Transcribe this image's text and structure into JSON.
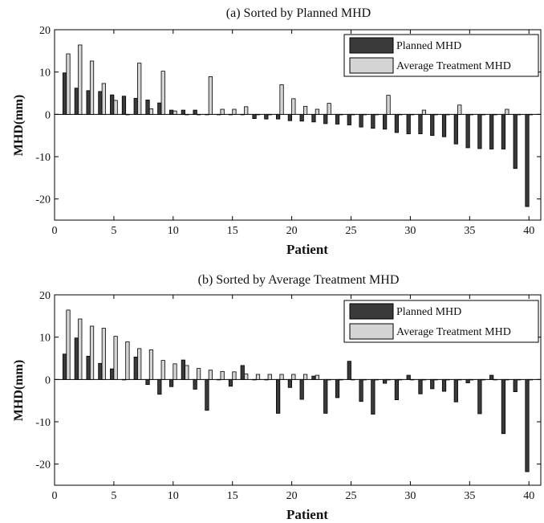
{
  "colors": {
    "planned": "#3a3a3a",
    "treatment": "#d4d4d4",
    "axis": "#000000",
    "background": "#ffffff"
  },
  "chart_data": [
    {
      "type": "bar",
      "title": "(a) Sorted by Planned MHD",
      "xlabel": "Patient",
      "ylabel": "MHD(mm)",
      "xlim": [
        0,
        41
      ],
      "ylim": [
        -25,
        20
      ],
      "xticks": [
        0,
        5,
        10,
        15,
        20,
        25,
        30,
        35,
        40
      ],
      "yticks": [
        -20,
        -10,
        0,
        10,
        20
      ],
      "grid": false,
      "legend_position": "top-right",
      "x": [
        1,
        2,
        3,
        4,
        5,
        6,
        7,
        8,
        9,
        10,
        11,
        12,
        13,
        14,
        15,
        16,
        17,
        18,
        19,
        20,
        21,
        22,
        23,
        24,
        25,
        26,
        27,
        28,
        29,
        30,
        31,
        32,
        33,
        34,
        35,
        36,
        37,
        38,
        39,
        40
      ],
      "series": [
        {
          "name": "Planned MHD",
          "values": [
            9.8,
            6.2,
            5.6,
            5.4,
            4.6,
            4.3,
            3.8,
            3.4,
            2.7,
            1.0,
            1.0,
            1.0,
            0.0,
            0.0,
            0.0,
            0.0,
            -1.0,
            -1.1,
            -1.1,
            -1.5,
            -1.6,
            -1.8,
            -2.2,
            -2.3,
            -2.5,
            -3.0,
            -3.3,
            -3.5,
            -4.3,
            -4.6,
            -4.6,
            -5.0,
            -5.3,
            -7.0,
            -7.9,
            -8.1,
            -8.2,
            -8.2,
            -12.8,
            -21.8
          ]
        },
        {
          "name": "Average Treatment MHD",
          "values": [
            14.3,
            16.4,
            12.6,
            7.3,
            3.3,
            0.0,
            12.1,
            1.3,
            10.2,
            0.8,
            0.0,
            0.0,
            8.9,
            1.2,
            1.2,
            1.8,
            0.0,
            0.0,
            7.0,
            3.7,
            1.9,
            1.2,
            2.6,
            0.0,
            0.0,
            0.0,
            0.0,
            4.5,
            0.0,
            0.0,
            1.0,
            0.0,
            0.0,
            2.2,
            0.0,
            0.0,
            0.0,
            1.2,
            0.0,
            0.0
          ]
        }
      ]
    },
    {
      "type": "bar",
      "title": "(b) Sorted by Average Treatment MHD",
      "xlabel": "Patient",
      "ylabel": "MHD(mm)",
      "xlim": [
        0,
        41
      ],
      "ylim": [
        -25,
        20
      ],
      "xticks": [
        0,
        5,
        10,
        15,
        20,
        25,
        30,
        35,
        40
      ],
      "yticks": [
        -20,
        -10,
        0,
        10,
        20
      ],
      "grid": false,
      "legend_position": "top-right",
      "x": [
        1,
        2,
        3,
        4,
        5,
        6,
        7,
        8,
        9,
        10,
        11,
        12,
        13,
        14,
        15,
        16,
        17,
        18,
        19,
        20,
        21,
        22,
        23,
        24,
        25,
        26,
        27,
        28,
        29,
        30,
        31,
        32,
        33,
        34,
        35,
        36,
        37,
        38,
        39,
        40
      ],
      "series": [
        {
          "name": "Planned MHD",
          "values": [
            6.0,
            9.8,
            5.5,
            3.8,
            2.5,
            0.0,
            5.3,
            -1.2,
            -3.5,
            -1.7,
            4.6,
            -2.3,
            -7.3,
            0.0,
            -1.6,
            3.3,
            0.0,
            0.0,
            -8.0,
            -1.9,
            -4.7,
            0.8,
            -8.0,
            -4.3,
            4.3,
            -5.2,
            -8.2,
            -0.9,
            -4.8,
            1.0,
            -3.4,
            -2.2,
            -2.8,
            -5.3,
            -0.8,
            -8.1,
            1.0,
            -12.8,
            -2.9,
            -21.8
          ]
        },
        {
          "name": "Average Treatment MHD",
          "values": [
            16.4,
            14.3,
            12.6,
            12.1,
            10.2,
            8.9,
            7.3,
            7.0,
            4.5,
            3.7,
            3.3,
            2.6,
            2.2,
            1.9,
            1.8,
            1.3,
            1.2,
            1.2,
            1.2,
            1.2,
            1.2,
            1.0,
            0.0,
            0.0,
            0.0,
            0.0,
            0.0,
            0.0,
            0.0,
            0.0,
            0.0,
            0.0,
            0.0,
            0.0,
            0.0,
            0.0,
            0.0,
            0.0,
            0.0,
            0.0
          ]
        }
      ]
    }
  ]
}
